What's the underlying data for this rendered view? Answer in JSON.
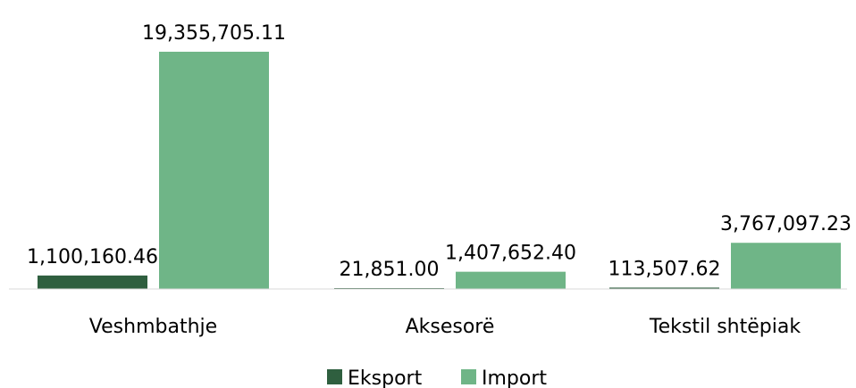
{
  "chart_data": {
    "type": "bar",
    "categories": [
      "Veshmbathje",
      "Aksesorë",
      "Tekstil shtëpiak"
    ],
    "series": [
      {
        "name": "Eksport",
        "color": "#2f5f3f",
        "values": [
          1100160.46,
          21851.0,
          113507.62
        ],
        "labels": [
          "1,100,160.46",
          "21,851.00",
          "113,507.62"
        ]
      },
      {
        "name": "Import",
        "color": "#6fb587",
        "values": [
          19355705.11,
          1407652.4,
          3767097.23
        ],
        "labels": [
          "19,355,705.11",
          "1,407,652.40",
          "3,767,097.23"
        ]
      }
    ],
    "ylim": [
      0,
      19355705.11
    ],
    "grid": false,
    "legend_position": "bottom",
    "axis_color": "#d9d9d9"
  }
}
